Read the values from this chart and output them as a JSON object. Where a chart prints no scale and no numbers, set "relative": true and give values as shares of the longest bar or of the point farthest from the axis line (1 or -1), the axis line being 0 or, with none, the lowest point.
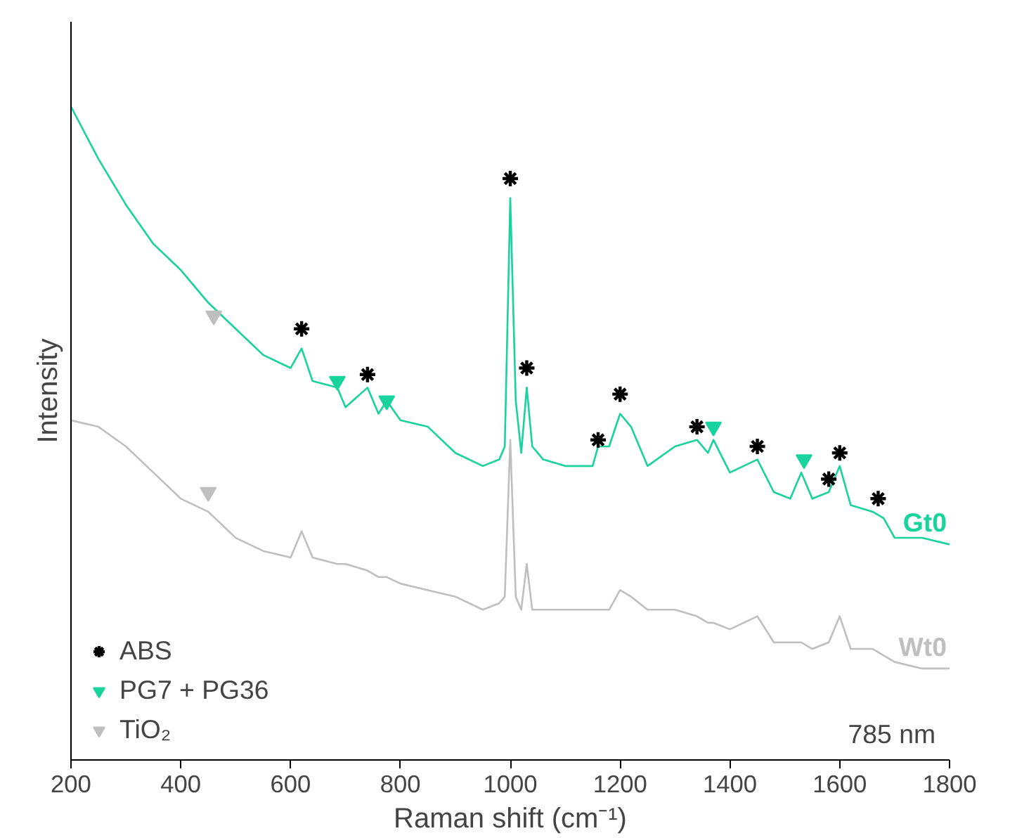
{
  "chart_data": {
    "type": "line",
    "relative": true,
    "xlabel": "Raman shift (cm⁻¹)",
    "ylabel": "Intensity",
    "xlim": [
      200,
      1800
    ],
    "xticks": [
      200,
      400,
      600,
      800,
      1000,
      1200,
      1400,
      1600,
      1800
    ],
    "legend": "bottom left",
    "grid": false,
    "annotations": [
      "785 nm"
    ],
    "x": [
      200,
      250,
      300,
      350,
      400,
      450,
      500,
      550,
      600,
      620,
      640,
      685,
      700,
      740,
      760,
      775,
      800,
      850,
      900,
      950,
      980,
      990,
      1000,
      1010,
      1020,
      1030,
      1040,
      1060,
      1100,
      1150,
      1160,
      1180,
      1200,
      1220,
      1250,
      1300,
      1340,
      1360,
      1370,
      1400,
      1450,
      1480,
      1510,
      1530,
      1550,
      1580,
      1600,
      1620,
      1660,
      1680,
      1700,
      1750,
      1800
    ],
    "series": [
      {
        "name": "Gt0",
        "color": "#19d39c",
        "values": [
          1.0,
          0.92,
          0.85,
          0.79,
          0.75,
          0.7,
          0.66,
          0.62,
          0.6,
          0.63,
          0.58,
          0.57,
          0.54,
          0.57,
          0.53,
          0.55,
          0.52,
          0.51,
          0.47,
          0.45,
          0.46,
          0.48,
          0.86,
          0.55,
          0.47,
          0.57,
          0.48,
          0.46,
          0.45,
          0.45,
          0.48,
          0.48,
          0.53,
          0.51,
          0.45,
          0.48,
          0.49,
          0.47,
          0.49,
          0.44,
          0.46,
          0.41,
          0.4,
          0.44,
          0.4,
          0.41,
          0.45,
          0.39,
          0.38,
          0.37,
          0.34,
          0.34,
          0.33
        ]
      },
      {
        "name": "Wt0",
        "color": "#bfbfbf",
        "values": [
          0.52,
          0.51,
          0.48,
          0.44,
          0.4,
          0.38,
          0.34,
          0.32,
          0.31,
          0.35,
          0.31,
          0.3,
          0.3,
          0.29,
          0.28,
          0.28,
          0.27,
          0.26,
          0.25,
          0.23,
          0.24,
          0.25,
          0.49,
          0.25,
          0.23,
          0.3,
          0.23,
          0.23,
          0.23,
          0.23,
          0.23,
          0.23,
          0.26,
          0.25,
          0.23,
          0.23,
          0.22,
          0.21,
          0.21,
          0.2,
          0.22,
          0.18,
          0.18,
          0.18,
          0.17,
          0.18,
          0.22,
          0.17,
          0.17,
          0.16,
          0.15,
          0.14,
          0.14
        ]
      },
      {
        "name": "ABS",
        "type": "scatter",
        "marker": "cross",
        "color": "#000000",
        "x": [
          620,
          740,
          1000,
          1030,
          1160,
          1200,
          1340,
          1450,
          1580,
          1600,
          1670
        ],
        "values": [
          0.66,
          0.59,
          0.89,
          0.6,
          0.49,
          0.56,
          0.51,
          0.48,
          0.43,
          0.47,
          0.4
        ]
      },
      {
        "name": "PG7 + PG36",
        "type": "scatter",
        "marker": "triangle",
        "color": "#19d39c",
        "x": [
          685,
          775,
          1370,
          1535
        ],
        "values": [
          0.58,
          0.55,
          0.51,
          0.46
        ]
      },
      {
        "name": "TiO₂",
        "type": "scatter",
        "marker": "triangle",
        "color": "#bfbfbf",
        "x": [
          460,
          450
        ],
        "values": [
          0.68,
          0.41
        ]
      }
    ]
  }
}
